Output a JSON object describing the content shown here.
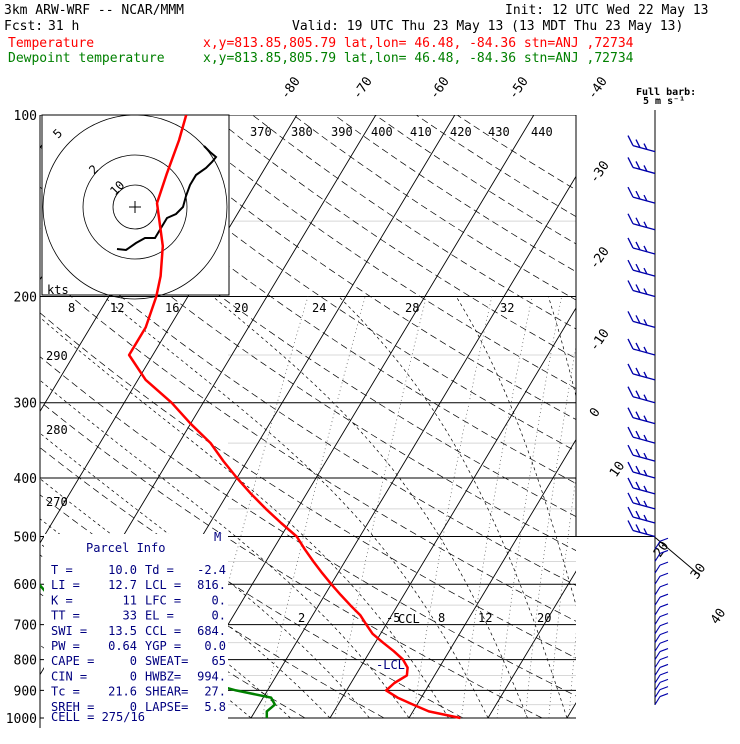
{
  "header": {
    "model": "3km ARW-WRF -- NCAR/MMM",
    "init": "Init: 12 UTC Wed 22 May 13",
    "fcst_label": "Fcst:",
    "fcst_value": "31 h",
    "valid": "Valid: 19 UTC Thu 23 May 13 (13 MDT Thu 23 May 13)",
    "temp_label": "Temperature",
    "temp_info": "x,y=813.85,805.79  lat,lon= 46.48, -84.36  stn=ANJ ,72734",
    "dew_label": "Dewpoint temperature",
    "dew_info": "x,y=813.85,805.79  lat,lon= 46.48, -84.36  stn=ANJ ,72734"
  },
  "colors": {
    "temperature": "#ff0000",
    "dewpoint": "#008000",
    "wind_barbs": "#0000aa",
    "parcel_box": "#000080",
    "isotherm": "#000000"
  },
  "barb_title": [
    "Full barb:",
    "5 m s⁻¹"
  ],
  "isotherm_labels_top": [
    "-80",
    "-70",
    "-60",
    "-50",
    "-40"
  ],
  "isotherm_labels_right": [
    "-30",
    "-20",
    "-10",
    "0",
    "10",
    "20",
    "30",
    "40"
  ],
  "theta_labels": [
    "370",
    "380",
    "390",
    "400",
    "410",
    "420",
    "430",
    "440"
  ],
  "mixing_ratio_labels_upper": [
    "8",
    "12",
    "16",
    "20",
    "24",
    "28",
    "32"
  ],
  "mixing_ratio_labels_lower": [
    "2",
    "-5",
    "8",
    "12",
    "20"
  ],
  "lcl_labels": [
    "CCL",
    "LCL"
  ],
  "hodograph": {
    "kts_label": "kts",
    "ring_labels": [
      "5",
      "2",
      "10"
    ],
    "side_labels": [
      "290",
      "280",
      "270"
    ]
  },
  "parcel_info": {
    "title": "Parcel Info",
    "m_label": "M",
    "rows": [
      [
        "T  =",
        "10.0",
        "Td  =",
        "-2.4"
      ],
      [
        "LI =",
        "12.7",
        "LCL =",
        "816."
      ],
      [
        "K  =",
        "11",
        "LFC =",
        "0."
      ],
      [
        "TT =",
        "33",
        "EL  =",
        "0."
      ],
      [
        "SWI =",
        "13.5",
        "CCL =",
        "684."
      ],
      [
        "PW =",
        "0.64",
        "YGP =",
        "0.0"
      ],
      [
        "CAPE =",
        "0",
        "SWEAT=",
        "65"
      ],
      [
        "CIN =",
        "0",
        "HWBZ=",
        "994."
      ],
      [
        "Tc =",
        "21.6",
        "SHEAR=",
        "27."
      ],
      [
        "SREH =",
        "0",
        "LAPSE=",
        "5.8"
      ]
    ],
    "cell": "CELL = 275/16"
  },
  "chart_data": {
    "type": "line",
    "diagram": "Skew-T log-P",
    "y_axis": {
      "label": "",
      "scale": "log",
      "ticks": [
        100,
        200,
        300,
        400,
        500,
        600,
        700,
        800,
        900,
        1000
      ],
      "units": "hPa"
    },
    "x_axis": {
      "label": "",
      "skewed_isotherms_C": [
        -80,
        -70,
        -60,
        -50,
        -40,
        -30,
        -20,
        -10,
        0,
        10,
        20,
        30,
        40
      ]
    },
    "series": [
      {
        "name": "Temperature",
        "points": [
          [
            1000,
            16.5
          ],
          [
            975,
            12
          ],
          [
            950,
            9.5
          ],
          [
            925,
            7
          ],
          [
            900,
            5
          ],
          [
            875,
            5.5
          ],
          [
            850,
            6.5
          ],
          [
            825,
            6
          ],
          [
            800,
            4.8
          ],
          [
            775,
            3
          ],
          [
            750,
            1
          ],
          [
            725,
            -1
          ],
          [
            700,
            -2.5
          ],
          [
            675,
            -4
          ],
          [
            650,
            -6
          ],
          [
            625,
            -8
          ],
          [
            600,
            -10
          ],
          [
            575,
            -12
          ],
          [
            550,
            -14
          ],
          [
            525,
            -16
          ],
          [
            500,
            -18
          ],
          [
            475,
            -21
          ],
          [
            450,
            -24
          ],
          [
            425,
            -27
          ],
          [
            400,
            -30
          ],
          [
            375,
            -33
          ],
          [
            350,
            -36
          ],
          [
            325,
            -40
          ],
          [
            300,
            -44
          ],
          [
            275,
            -49
          ],
          [
            250,
            -53
          ],
          [
            225,
            -53
          ],
          [
            200,
            -54
          ],
          [
            185,
            -55
          ],
          [
            165,
            -57
          ],
          [
            140,
            -61
          ],
          [
            125,
            -62
          ],
          [
            110,
            -63
          ],
          [
            100,
            -64
          ]
        ]
      },
      {
        "name": "Dewpoint temperature",
        "points": [
          [
            1000,
            -8
          ],
          [
            975,
            -8.5
          ],
          [
            950,
            -8
          ],
          [
            925,
            -9
          ],
          [
            900,
            -14
          ],
          [
            875,
            -18
          ],
          [
            850,
            -22
          ],
          [
            825,
            -26
          ],
          [
            800,
            -29
          ],
          [
            775,
            -33
          ],
          [
            750,
            -35
          ],
          [
            725,
            -37
          ],
          [
            700,
            -40
          ],
          [
            675,
            -41
          ],
          [
            650,
            -43
          ],
          [
            625,
            -45
          ],
          [
            600,
            -47
          ],
          [
            575,
            -49
          ],
          [
            550,
            -52
          ],
          [
            525,
            -55
          ],
          [
            500,
            -58
          ],
          [
            475,
            -60
          ],
          [
            450,
            -60
          ],
          [
            425,
            -61
          ],
          [
            400,
            -62
          ],
          [
            375,
            -63
          ],
          [
            350,
            -64
          ],
          [
            325,
            -65
          ],
          [
            300,
            -67
          ],
          [
            275,
            -69
          ],
          [
            250,
            -72
          ],
          [
            225,
            -75
          ],
          [
            200,
            -79
          ],
          [
            185,
            -84
          ],
          [
            170,
            -92
          ],
          [
            160,
            -89
          ],
          [
            145,
            -85
          ],
          [
            130,
            -86
          ],
          [
            115,
            -88
          ],
          [
            100,
            -92
          ]
        ]
      }
    ],
    "wind_barbs_at_hPa": [
      115,
      125,
      140,
      155,
      170,
      185,
      200,
      225,
      250,
      275,
      300,
      325,
      350,
      375,
      400,
      425,
      450,
      475,
      500,
      525,
      550,
      575,
      600,
      625,
      650,
      675,
      700,
      725,
      750,
      775,
      800,
      825,
      850,
      875,
      900,
      925,
      950
    ],
    "grid": true
  }
}
